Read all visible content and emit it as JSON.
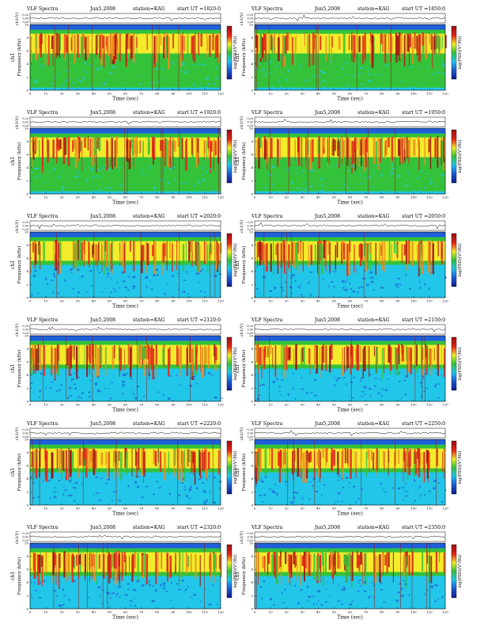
{
  "page": {
    "background": "#ffffff"
  },
  "common": {
    "title_left": "VLF Spectra",
    "date": "Jun5,2008",
    "station": "station=KAG",
    "x_label": "Time (sec)",
    "y_label_freq": "Frequency (kHz)",
    "y_label_ch": "ch1",
    "y_label_amp": "ch1(V)",
    "colorbar_label": "log(PSD)(V²/Hz)",
    "x_ticks": [
      "0",
      "10",
      "20",
      "30",
      "40",
      "50",
      "60",
      "70",
      "80",
      "90",
      "100",
      "110",
      "120"
    ],
    "y_ticks": [
      "0",
      "2",
      "4",
      "6",
      "8",
      "10"
    ],
    "amp_ticks": [
      "-0.20",
      "0.00",
      "0.20"
    ],
    "colors": {
      "cold": "#1f5fd8",
      "cyan": "#21c6e8",
      "green": "#34c23a",
      "yellow": "#f2ec2a",
      "orange": "#f08a1e",
      "red": "#e2261a",
      "dark_red": "#9b0d0d"
    }
  },
  "chart_data": [
    {
      "type": "heatmap",
      "subtitle": "start UT =1820:0",
      "xlim": [
        0,
        120
      ],
      "ylim": [
        0,
        10
      ],
      "z_units": "log(PSD)(V²/Hz)"
    },
    {
      "type": "heatmap",
      "subtitle": "start UT =1850:0",
      "xlim": [
        0,
        120
      ],
      "ylim": [
        0,
        10
      ],
      "z_units": "log(PSD)(V²/Hz)"
    },
    {
      "type": "heatmap",
      "subtitle": "start UT =1920:0",
      "xlim": [
        0,
        120
      ],
      "ylim": [
        0,
        10
      ],
      "z_units": "log(PSD)(V²/Hz)"
    },
    {
      "type": "heatmap",
      "subtitle": "start UT =1950:0",
      "xlim": [
        0,
        120
      ],
      "ylim": [
        0,
        10
      ],
      "z_units": "log(PSD)(V²/Hz)"
    },
    {
      "type": "heatmap",
      "subtitle": "start UT =2020:0",
      "xlim": [
        0,
        120
      ],
      "ylim": [
        0,
        10
      ],
      "z_units": "log(PSD)(V²/Hz)"
    },
    {
      "type": "heatmap",
      "subtitle": "start UT =2050:0",
      "xlim": [
        0,
        120
      ],
      "ylim": [
        0,
        10
      ],
      "z_units": "log(PSD)(V²/Hz)"
    },
    {
      "type": "heatmap",
      "subtitle": "start UT =2120:0",
      "xlim": [
        0,
        120
      ],
      "ylim": [
        0,
        10
      ],
      "z_units": "log(PSD)(V²/Hz)"
    },
    {
      "type": "heatmap",
      "subtitle": "start UT =2150:0",
      "xlim": [
        0,
        120
      ],
      "ylim": [
        0,
        10
      ],
      "z_units": "log(PSD)(V²/Hz)"
    },
    {
      "type": "heatmap",
      "subtitle": "start UT =2220:0",
      "xlim": [
        0,
        120
      ],
      "ylim": [
        0,
        10
      ],
      "z_units": "log(PSD)(V²/Hz)"
    },
    {
      "type": "heatmap",
      "subtitle": "start UT =2250:0",
      "xlim": [
        0,
        120
      ],
      "ylim": [
        0,
        10
      ],
      "z_units": "log(PSD)(V²/Hz)"
    },
    {
      "type": "heatmap",
      "subtitle": "start UT =2320:0",
      "xlim": [
        0,
        120
      ],
      "ylim": [
        0,
        10
      ],
      "z_units": "log(PSD)(V²/Hz)"
    },
    {
      "type": "heatmap",
      "subtitle": "start UT =2350:0",
      "xlim": [
        0,
        120
      ],
      "ylim": [
        0,
        10
      ],
      "z_units": "log(PSD)(V²/Hz)"
    }
  ]
}
